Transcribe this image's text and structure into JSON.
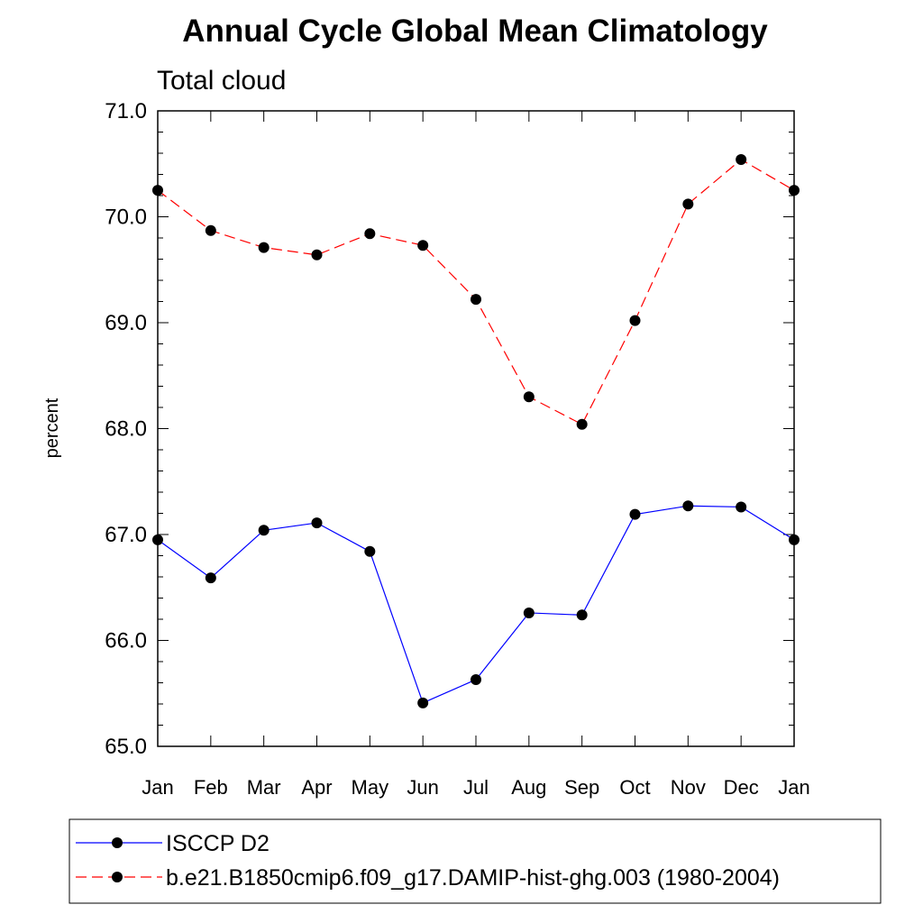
{
  "chart_data": {
    "type": "line",
    "title": "Annual Cycle Global Mean Climatology",
    "subtitle": "Total cloud",
    "xlabel": "",
    "ylabel": "percent",
    "ylim": [
      65.0,
      71.0
    ],
    "yticks": [
      "65.0",
      "66.0",
      "67.0",
      "68.0",
      "69.0",
      "70.0",
      "71.0"
    ],
    "categories": [
      "Jan",
      "Feb",
      "Mar",
      "Apr",
      "May",
      "Jun",
      "Jul",
      "Aug",
      "Sep",
      "Oct",
      "Nov",
      "Dec",
      "Jan"
    ],
    "grid": false,
    "legend_position": "bottom",
    "series": [
      {
        "name": "ISCCP D2",
        "color": "#0000ff",
        "line_style": "solid",
        "marker": "filled-circle",
        "values": [
          66.95,
          66.59,
          67.04,
          67.11,
          66.84,
          65.41,
          65.63,
          66.26,
          66.24,
          67.19,
          67.27,
          67.26,
          66.95
        ]
      },
      {
        "name": "b.e21.B1850cmip6.f09_g17.DAMIP-hist-ghg.003 (1980-2004)",
        "color": "#ff0000",
        "line_style": "dashed",
        "marker": "filled-circle",
        "values": [
          70.25,
          69.87,
          69.71,
          69.64,
          69.84,
          69.73,
          69.22,
          68.3,
          68.04,
          69.02,
          70.12,
          70.54,
          70.25
        ]
      }
    ]
  }
}
